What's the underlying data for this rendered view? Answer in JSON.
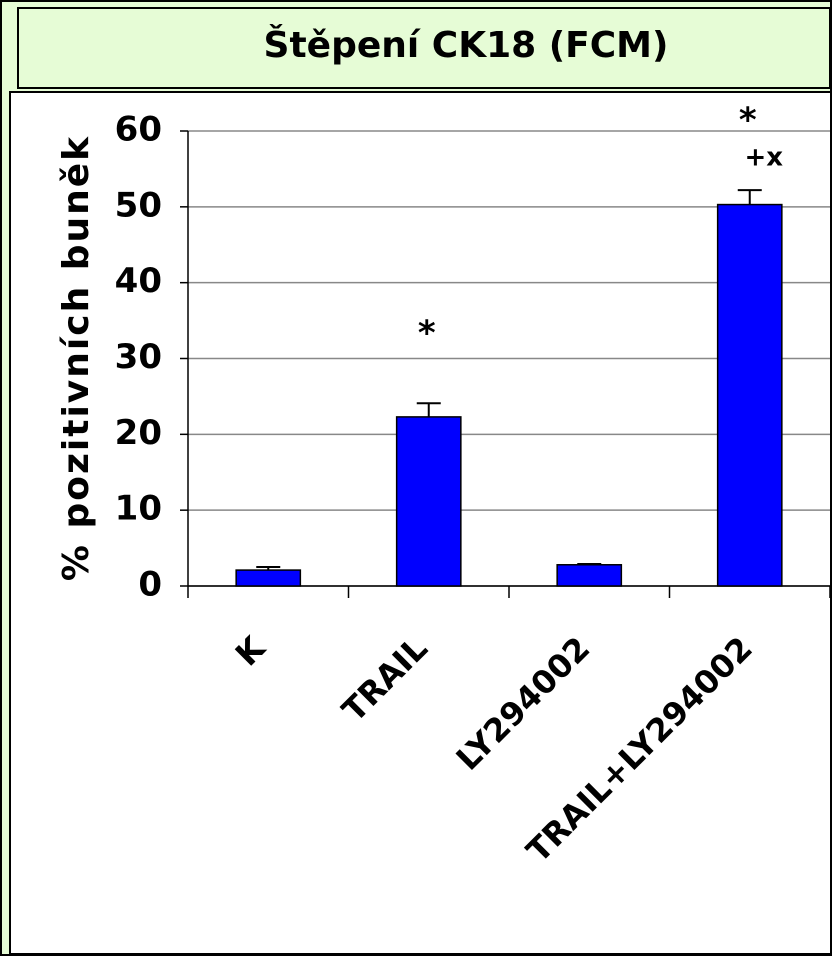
{
  "chart_data": {
    "type": "bar",
    "title": "Štěpení CK18 (FCM)",
    "y_label": "% pozitivních buněk",
    "categories": [
      "K",
      "TRAIL",
      "LY294002",
      "TRAIL+LY294002"
    ],
    "values": [
      2.1,
      22.3,
      2.8,
      50.3
    ],
    "errors": [
      0.4,
      1.8,
      0.1,
      1.9
    ],
    "markers": [
      null,
      "*",
      null,
      "*"
    ],
    "sub_markers": [
      null,
      null,
      null,
      "+x"
    ],
    "color": "#0000ff",
    "ylim": [
      0,
      60
    ],
    "yticks": [
      0,
      10,
      20,
      30,
      40,
      50,
      60
    ],
    "grid": true
  }
}
